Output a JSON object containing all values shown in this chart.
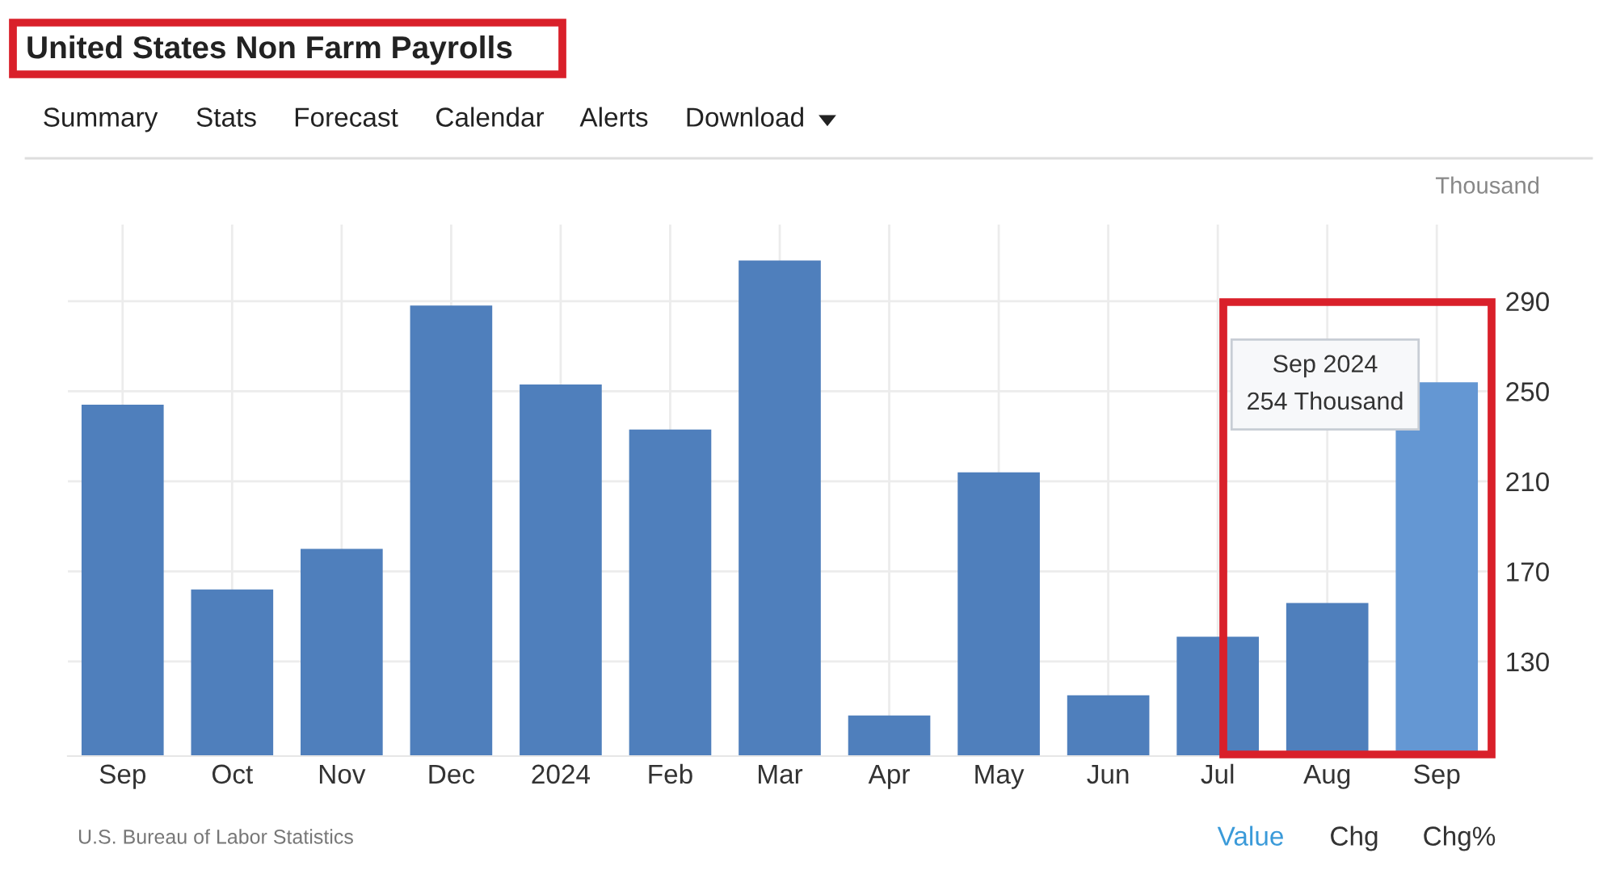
{
  "chart_data": {
    "type": "bar",
    "title": "United States Non Farm Payrolls",
    "ylabel": "Thousand",
    "categories": [
      "Sep",
      "Oct",
      "Nov",
      "Dec",
      "2024",
      "Feb",
      "Mar",
      "Apr",
      "May",
      "Jun",
      "Jul",
      "Aug",
      "Sep"
    ],
    "values": [
      244,
      162,
      180,
      288,
      253,
      233,
      308,
      106,
      214,
      115,
      141,
      156,
      254
    ],
    "colors": [
      "#4f7fbc",
      "#4f7fbc",
      "#4f7fbc",
      "#4f7fbc",
      "#4f7fbc",
      "#4f7fbc",
      "#4f7fbc",
      "#4f7fbc",
      "#4f7fbc",
      "#4f7fbc",
      "#4f7fbc",
      "#4f7fbc",
      "#6497d3"
    ],
    "ylim": [
      88,
      324
    ],
    "yticks": [
      130,
      170,
      210,
      250,
      290
    ],
    "grid": true,
    "annotations": [
      "Summary",
      "Stats",
      "Forecast",
      "Calendar",
      "Alerts",
      "Download",
      "U.S. Bureau of Labor Statistics",
      "Value",
      "Chg",
      "Chg%",
      "Sep 2024\n254 Thousand"
    ]
  }
}
